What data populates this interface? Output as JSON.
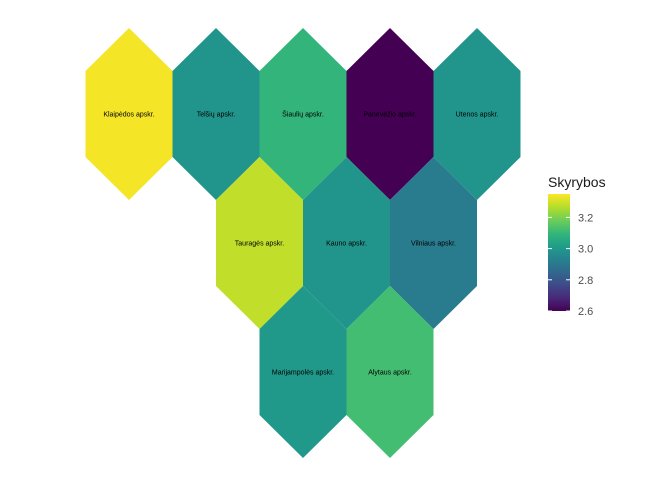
{
  "chart_data": {
    "type": "heatmap",
    "subtype": "hexagon-tile-map",
    "fill_variable": "Skyrybos",
    "scale": {
      "name": "viridis",
      "min": 2.6,
      "max": 3.35
    },
    "legend": {
      "title": "Skyrybos",
      "position": "right",
      "breaks": [
        2.6,
        2.8,
        3.0,
        3.2
      ],
      "break_labels": [
        "2.6",
        "2.8",
        "3.0",
        "3.2"
      ]
    },
    "regions": [
      {
        "name": "Klaipėdos apskr.",
        "row": 0,
        "col": 0,
        "value": 3.34
      },
      {
        "name": "Telšių apskr.",
        "row": 0,
        "col": 1,
        "value": 2.99
      },
      {
        "name": "Šiaulių apskr.",
        "row": 0,
        "col": 2,
        "value": 3.09
      },
      {
        "name": "Panevėžio apskr.",
        "row": 0,
        "col": 3,
        "value": 2.6
      },
      {
        "name": "Utenos apskr.",
        "row": 0,
        "col": 4,
        "value": 2.99
      },
      {
        "name": "Tauragės apskr.",
        "row": 1,
        "col": 1.5,
        "value": 3.28
      },
      {
        "name": "Kauno apskr.",
        "row": 1,
        "col": 2.5,
        "value": 2.99
      },
      {
        "name": "Vilniaus apskr.",
        "row": 1,
        "col": 3.5,
        "value": 2.91
      },
      {
        "name": "Marijampolės apskr.",
        "row": 2,
        "col": 2,
        "value": 3.0
      },
      {
        "name": "Alytaus apskr.",
        "row": 2,
        "col": 3,
        "value": 3.12
      }
    ]
  }
}
